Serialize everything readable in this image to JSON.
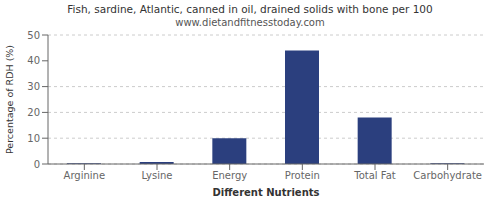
{
  "chart_data": {
    "type": "bar",
    "title": "Fish, sardine, Atlantic, canned in oil, drained solids with bone per 100",
    "subtitle": "www.dietandfitnesstoday.com",
    "xlabel": "Different Nutrients",
    "ylabel": "Percentage of RDH (%)",
    "categories": [
      "Arginine",
      "Lysine",
      "Energy",
      "Protein",
      "Total Fat",
      "Carbohydrate"
    ],
    "values": [
      0.3,
      0.8,
      10.0,
      44.0,
      18.0,
      0.3
    ],
    "color": "#2b3f7e",
    "ylim": [
      0,
      50
    ],
    "yticks": [
      0,
      10,
      20,
      30,
      40,
      50
    ],
    "grid": true
  }
}
